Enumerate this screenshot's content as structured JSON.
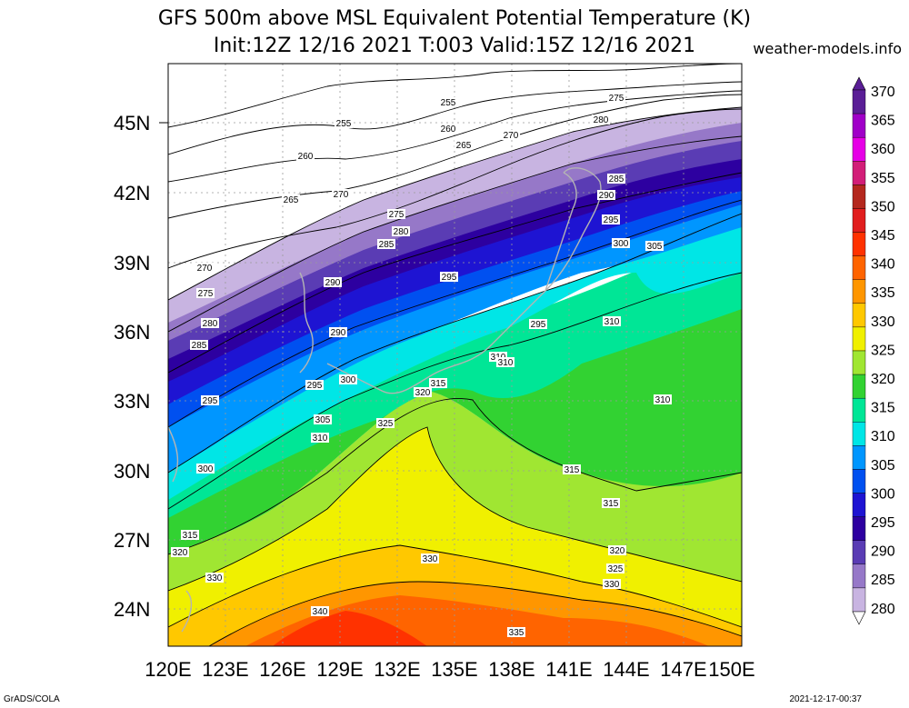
{
  "title_line1": "GFS 500m above MSL Equivalent Potential Temperature (K)",
  "title_line2": "Init:12Z 12/16 2021 T:003 Valid:15Z 12/16 2021",
  "site": "weather-models.info",
  "footer_left": "GrADS/COLA",
  "footer_right": "2021-12-17-00:37",
  "map": {
    "lat_labels": [
      "45N",
      "42N",
      "39N",
      "36N",
      "33N",
      "30N",
      "27N",
      "24N"
    ],
    "lon_labels": [
      "120E",
      "123E",
      "126E",
      "129E",
      "132E",
      "135E",
      "138E",
      "141E",
      "144E",
      "147E",
      "150E"
    ],
    "contour_labels": [
      "255",
      "255",
      "260",
      "260",
      "265",
      "265",
      "270",
      "270",
      "270",
      "275",
      "275",
      "275",
      "280",
      "280",
      "280",
      "285",
      "285",
      "285",
      "290",
      "290",
      "290",
      "295",
      "295",
      "295",
      "295",
      "295",
      "300",
      "300",
      "300",
      "305",
      "305",
      "310",
      "310",
      "310",
      "310",
      "310",
      "315",
      "315",
      "315",
      "315",
      "320",
      "320",
      "320",
      "325",
      "325",
      "330",
      "330",
      "330",
      "335",
      "340"
    ]
  },
  "colorbar": {
    "labels": [
      "370",
      "365",
      "360",
      "355",
      "350",
      "345",
      "340",
      "335",
      "330",
      "325",
      "320",
      "315",
      "310",
      "305",
      "300",
      "295",
      "290",
      "285",
      "280"
    ],
    "colors": [
      "#5a1e96",
      "#a000c8",
      "#e600e6",
      "#d21e78",
      "#b4281e",
      "#e11e1e",
      "#ff3200",
      "#ff6400",
      "#ff9600",
      "#ffc800",
      "#f0f000",
      "#a0e632",
      "#32d232",
      "#00e696",
      "#00e6e6",
      "#0096ff",
      "#0050f0",
      "#1e14d2",
      "#2d00a0",
      "#5a3cb4",
      "#9678c8",
      "#c8b4e1"
    ]
  }
}
